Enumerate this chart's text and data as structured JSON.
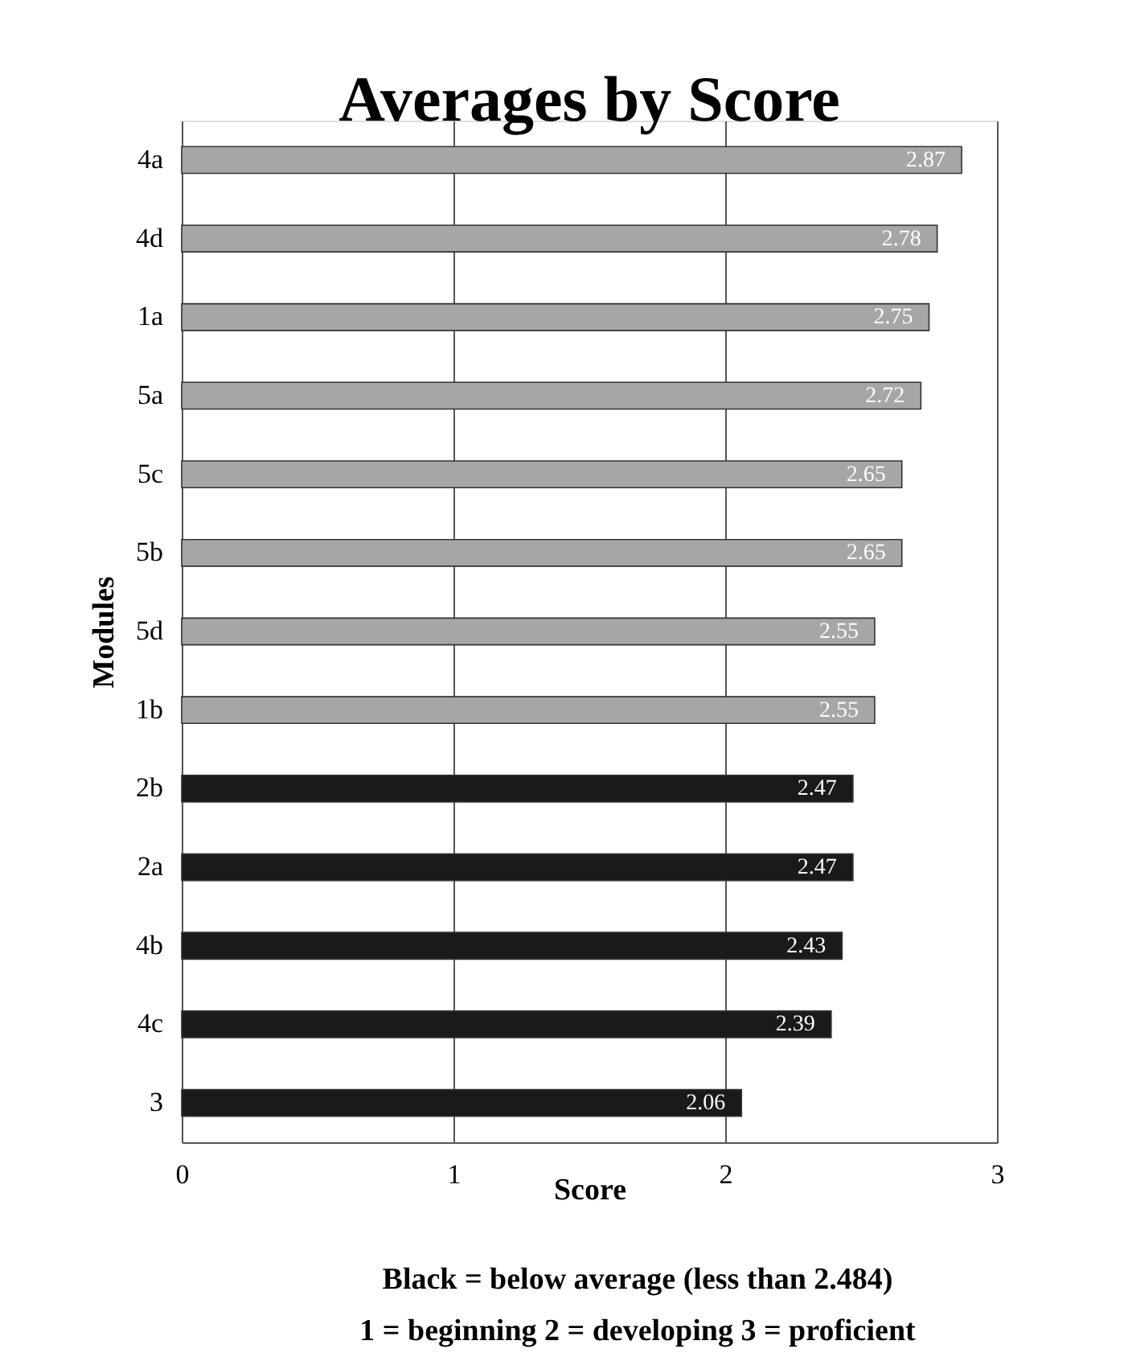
{
  "chart_data": {
    "type": "bar",
    "orientation": "horizontal",
    "title": "Averages by Score",
    "xlabel": "Score",
    "ylabel": "Modules",
    "categories": [
      "4a",
      "4d",
      "1a",
      "5a",
      "5c",
      "5b",
      "5d",
      "1b",
      "2b",
      "2a",
      "4b",
      "4c",
      "3"
    ],
    "values": [
      2.87,
      2.78,
      2.75,
      2.72,
      2.65,
      2.65,
      2.55,
      2.55,
      2.47,
      2.47,
      2.43,
      2.39,
      2.06
    ],
    "colors": [
      "#a6a6a6",
      "#a6a6a6",
      "#a6a6a6",
      "#a6a6a6",
      "#a6a6a6",
      "#a6a6a6",
      "#a6a6a6",
      "#a6a6a6",
      "#1a1a1a",
      "#1a1a1a",
      "#1a1a1a",
      "#1a1a1a",
      "#1a1a1a"
    ],
    "xlim": [
      0,
      3
    ],
    "xticks": [
      0,
      1,
      2,
      3
    ],
    "grid": "x",
    "data_labels": true,
    "annotations": [
      "Black = below average (less than 2.484)",
      "1 = beginning  2 = developing  3 = proficient"
    ]
  }
}
